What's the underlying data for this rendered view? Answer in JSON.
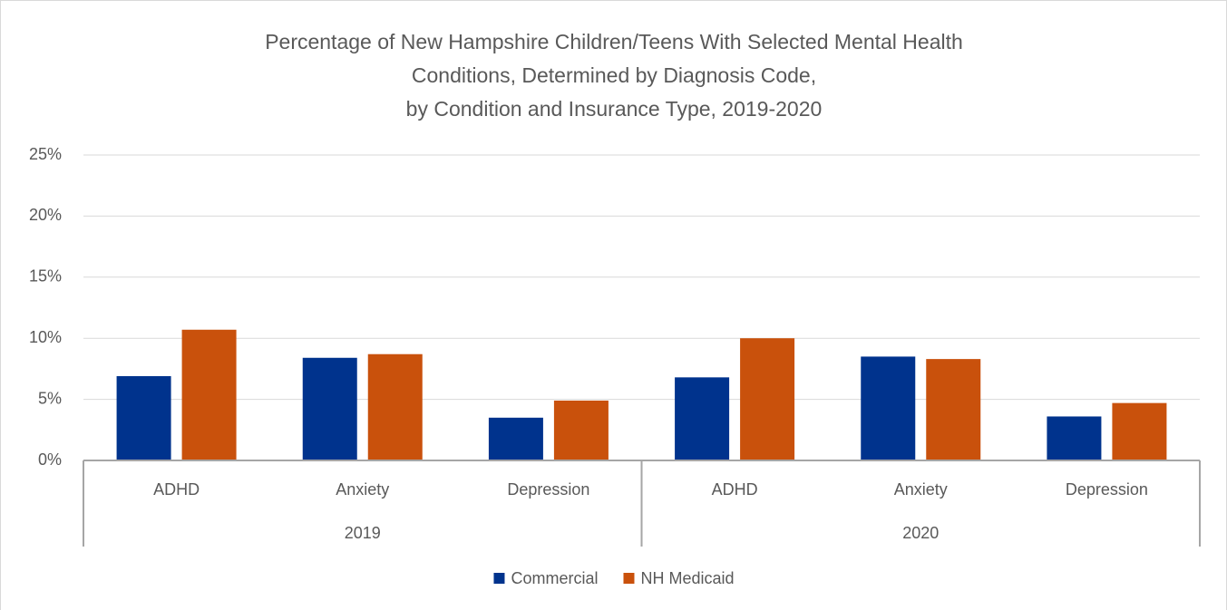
{
  "chart_data": {
    "type": "bar",
    "title": [
      "Percentage of New Hampshire Children/Teens With Selected Mental Health",
      "Conditions, Determined by Diagnosis Code,",
      "by Condition and Insurance Type, 2019-2020"
    ],
    "category_groups": [
      {
        "name": "2019",
        "categories": [
          "ADHD",
          "Anxiety",
          "Depression"
        ]
      },
      {
        "name": "2020",
        "categories": [
          "ADHD",
          "Anxiety",
          "Depression"
        ]
      }
    ],
    "series": [
      {
        "name": "Commercial",
        "color": "#00338d",
        "values": [
          6.9,
          8.4,
          3.5,
          6.8,
          8.5,
          3.6
        ]
      },
      {
        "name": "NH Medicaid",
        "color": "#c9510c",
        "values": [
          10.7,
          8.7,
          4.9,
          10.0,
          8.3,
          4.7
        ]
      }
    ],
    "ylim": [
      0,
      25
    ],
    "yticks": [
      {
        "value": 0,
        "label": "0%"
      },
      {
        "value": 5,
        "label": "5%"
      },
      {
        "value": 10,
        "label": "10%"
      },
      {
        "value": 15,
        "label": "15%"
      },
      {
        "value": 20,
        "label": "20%"
      },
      {
        "value": 25,
        "label": "25%"
      }
    ],
    "grid": true,
    "legend": "bottom"
  }
}
